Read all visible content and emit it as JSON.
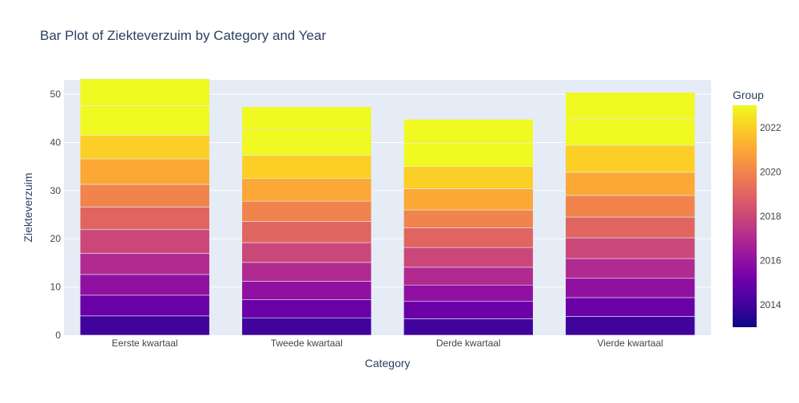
{
  "chart_data": {
    "type": "bar",
    "stacked": true,
    "title": "Bar Plot of Ziekteverzuim by Category and Year",
    "xlabel": "Category",
    "ylabel": "Ziekteverzuim",
    "categories": [
      "Eerste kwartaal",
      "Tweede kwartaal",
      "Derde kwartaal",
      "Vierde kwartaal"
    ],
    "ylim": [
      0,
      53
    ],
    "yticks": [
      0,
      10,
      20,
      30,
      40,
      50
    ],
    "grid": true,
    "series": [
      {
        "year": 2014,
        "values": [
          4.0,
          3.6,
          3.4,
          3.9
        ]
      },
      {
        "year": 2015,
        "values": [
          4.3,
          3.8,
          3.6,
          3.9
        ]
      },
      {
        "year": 2016,
        "values": [
          4.3,
          3.8,
          3.4,
          4.0
        ]
      },
      {
        "year": 2017,
        "values": [
          4.4,
          3.9,
          3.7,
          4.1
        ]
      },
      {
        "year": 2018,
        "values": [
          4.9,
          4.1,
          4.1,
          4.3
        ]
      },
      {
        "year": 2019,
        "values": [
          4.7,
          4.4,
          4.1,
          4.3
        ]
      },
      {
        "year": 2020,
        "values": [
          4.7,
          4.2,
          3.7,
          4.5
        ]
      },
      {
        "year": 2021,
        "values": [
          5.3,
          4.7,
          4.4,
          4.8
        ]
      },
      {
        "year": 2022,
        "values": [
          4.9,
          4.8,
          4.6,
          5.6
        ]
      },
      {
        "year": 2023,
        "values": [
          6.1,
          5.4,
          4.8,
          5.5
        ]
      },
      {
        "year": 2024,
        "values": [
          5.6,
          4.7,
          5.0,
          5.5
        ]
      }
    ],
    "colorbar": {
      "title": "Group",
      "tick_labels": [
        "2014",
        "2016",
        "2018",
        "2020",
        "2022"
      ],
      "tick_values": [
        2014,
        2016,
        2018,
        2020,
        2022
      ],
      "range": [
        2013,
        2023
      ],
      "colorscale": [
        "#0d0887",
        "#46039f",
        "#7201a8",
        "#9c179e",
        "#bd3786",
        "#d8576b",
        "#ed7953",
        "#fb9f3a",
        "#fdca26",
        "#f0f921"
      ]
    },
    "colors": {
      "plot_background": "#e5ecf6",
      "grid": "#ffffff",
      "text": "#2a3f5f",
      "tick_text": "#444444"
    }
  }
}
